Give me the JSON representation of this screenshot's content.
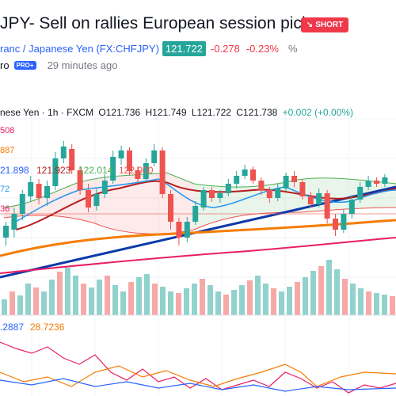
{
  "header": {
    "title": "JPY- Sell on rallies European session pick",
    "badge": "SHORT",
    "badge_icon": "down-arrow-icon",
    "symbol_name": "ranc / Japanese Yen",
    "symbol_ticker": "(FX:CHFJPY)",
    "price": "121.722",
    "change": "-0.278",
    "change_pct": "-0.23%",
    "percent_icon": "percent-icon"
  },
  "author": {
    "name": "ro",
    "badge": "PRO+",
    "time": "29 minutes ago"
  },
  "chart": {
    "series_title": "nese Yen · 1h · FXCM",
    "open": "O121.736",
    "high": "H121.749",
    "low": "L121.722",
    "close": "C121.738",
    "change": "+0.002 (+0.00%)",
    "left_labels": [
      {
        "text": "508",
        "color": "#e91e63"
      },
      {
        "text": "887",
        "color": "#f57c00"
      },
      {
        "text": "72",
        "color": "#2196f3"
      },
      {
        "text": "36",
        "color": "#e91e63"
      }
    ],
    "ichimoku_values": [
      {
        "text": "21.898",
        "color": "#2962ff"
      },
      {
        "text": "121.923",
        "color": "#b71c1c"
      },
      {
        "text": "122.014",
        "color": "#4caf50"
      },
      {
        "text": "122.000",
        "color": "#ef5350"
      }
    ],
    "indicator_values": [
      {
        "text": ".2887",
        "color": "#2962ff"
      },
      {
        "text": "28.7236",
        "color": "#f57c00"
      }
    ],
    "colors": {
      "up": "#26a69a",
      "down": "#ef5350",
      "trendline": "#0d3aa9",
      "ma_orange": "#f57c00",
      "ma_pink": "#e91e63",
      "kijun": "#b71c1c",
      "tenkan": "#2196f3",
      "cloud_green": "#4caf50"
    }
  }
}
